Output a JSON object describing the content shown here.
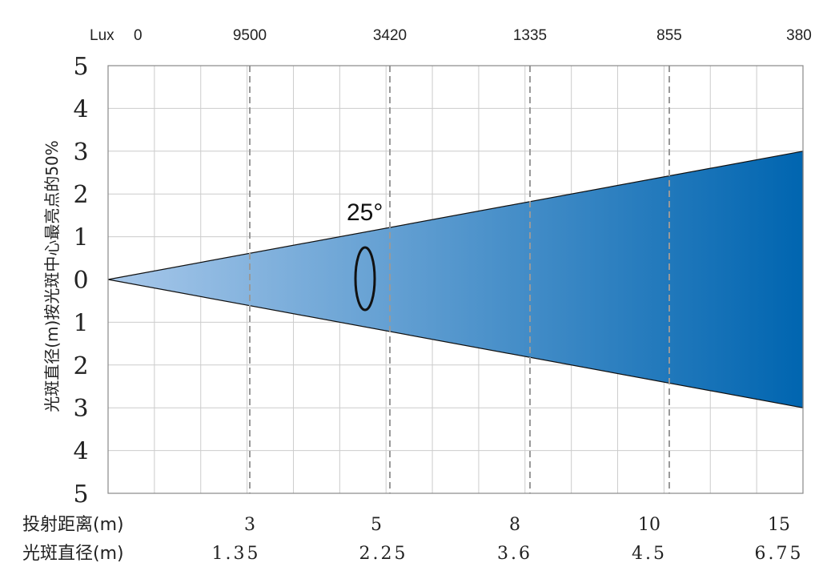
{
  "chart_data": {
    "type": "area",
    "xlabel": "投射距离(m)",
    "ylabel": "光斑直径(m)按光斑中心最亮点的50%",
    "beam_angle_label": "25°",
    "lux_label": "Lux",
    "lux_origin": "0",
    "lux_values": [
      "9500",
      "3420",
      "1335",
      "855",
      "380"
    ],
    "distance_label": "投射距离(m)",
    "distances": [
      "3",
      "5",
      "8",
      "10",
      "15"
    ],
    "diameter_label": "光斑直径(m)",
    "diameters": [
      "1.35",
      "2.25",
      "3.6",
      "4.5",
      "6.75"
    ],
    "y_ticks": [
      "5",
      "4",
      "3",
      "2",
      "1",
      "0",
      "1",
      "2",
      "3",
      "4",
      "5"
    ],
    "ylim": [
      -5,
      5
    ],
    "beam": {
      "start_distance": 0,
      "end_halfwidth": 3,
      "color_start": "#a8c8ea",
      "color_end": "#0065b0"
    },
    "grid": true,
    "colors": {
      "grid": "#cccccc",
      "dashed": "#999999",
      "frame": "#888888"
    }
  }
}
